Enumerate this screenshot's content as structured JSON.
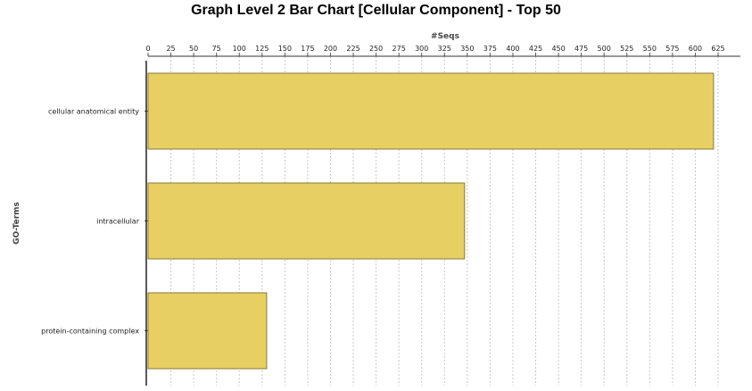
{
  "chart_data": {
    "type": "bar",
    "orientation": "horizontal",
    "title": "Graph Level 2 Bar Chart [Cellular Component] - Top 50",
    "xlabel": "#Seqs",
    "ylabel": "GO-Terms",
    "categories": [
      "cellular anatomical entity",
      "intracellular",
      "protein-containing complex"
    ],
    "values": [
      620,
      347,
      130
    ],
    "xlim": [
      0,
      650
    ],
    "xticks": [
      0,
      25,
      50,
      75,
      100,
      125,
      150,
      175,
      200,
      225,
      250,
      275,
      300,
      325,
      350,
      375,
      400,
      425,
      450,
      475,
      500,
      525,
      550,
      575,
      600,
      625
    ],
    "x_axis_position": "top",
    "grid": true,
    "bar_color": "#e8cf62",
    "bar_edge_color": "#8a7a3a",
    "grid_color": "#c8c8c8"
  }
}
